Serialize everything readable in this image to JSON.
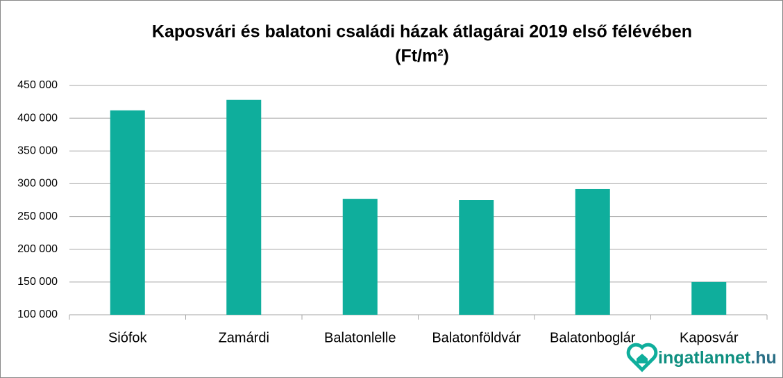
{
  "chart_data": {
    "type": "bar",
    "title": [
      "Kaposvári és balatoni családi házak átlagárai 2019 első félévében",
      "(Ft/m²)"
    ],
    "categories": [
      "Siófok",
      "Zamárdi",
      "Balatonlelle",
      "Balatonföldvár",
      "Balatonboglár",
      "Kaposvár"
    ],
    "values": [
      412000,
      428000,
      277000,
      275000,
      292000,
      150000
    ],
    "color": "#0fae9c",
    "ylim": [
      100000,
      450000
    ],
    "yticks": [
      {
        "value": 100000,
        "label": "100 000"
      },
      {
        "value": 150000,
        "label": "150 000"
      },
      {
        "value": 200000,
        "label": "200 000"
      },
      {
        "value": 250000,
        "label": "250 000"
      },
      {
        "value": 300000,
        "label": "300 000"
      },
      {
        "value": 350000,
        "label": "350 000"
      },
      {
        "value": 400000,
        "label": "400 000"
      },
      {
        "value": 450000,
        "label": "450 000"
      }
    ],
    "grid": true,
    "watermark": [
      "ingatlannet",
      ".hu"
    ]
  }
}
